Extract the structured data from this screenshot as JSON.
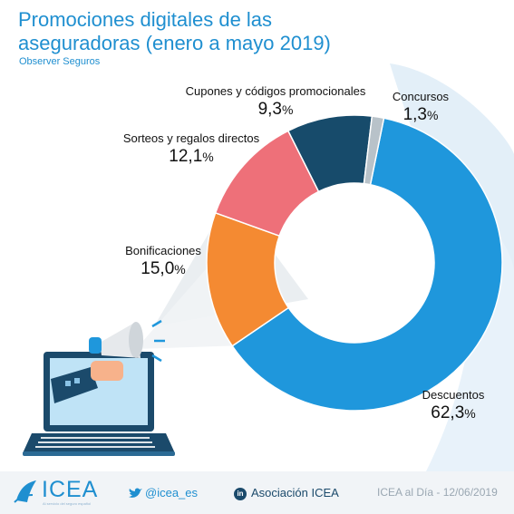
{
  "header": {
    "title": "Promociones digitales de las aseguradoras (enero a mayo 2019)",
    "subtitle": "Observer Seguros"
  },
  "colors": {
    "brand": "#1f8fd0",
    "descuentos": "#1f97dc",
    "bonificaciones": "#f48a32",
    "sorteos": "#ee7079",
    "cupones": "#174b6b",
    "concursos": "#b8c2c9",
    "background_shape": "#e3eff8"
  },
  "chart_data": {
    "type": "pie",
    "variant": "donut",
    "title": "Promociones digitales de las aseguradoras (enero a mayo 2019)",
    "unit": "%",
    "series": [
      {
        "name": "Descuentos",
        "value": 62.3,
        "label": "62,3",
        "color": "#1f97dc"
      },
      {
        "name": "Bonificaciones",
        "value": 15.0,
        "label": "15,0",
        "color": "#f48a32"
      },
      {
        "name": "Sorteos y regalos directos",
        "value": 12.1,
        "label": "12,1",
        "color": "#ee7079"
      },
      {
        "name": "Cupones y códigos promocionales",
        "value": 9.3,
        "label": "9,3",
        "color": "#174b6b"
      },
      {
        "name": "Concursos",
        "value": 1.3,
        "label": "1,3",
        "color": "#b8c2c9"
      }
    ]
  },
  "illustration": {
    "icon": "laptop-megaphone-icon"
  },
  "footer": {
    "logo_text": "ICEA",
    "logo_subtext": "Al servicio del seguro español",
    "twitter_handle": "@icea_es",
    "linkedin_label": "Asociación ICEA",
    "date_text": "ICEA al Día - 12/06/2019"
  }
}
